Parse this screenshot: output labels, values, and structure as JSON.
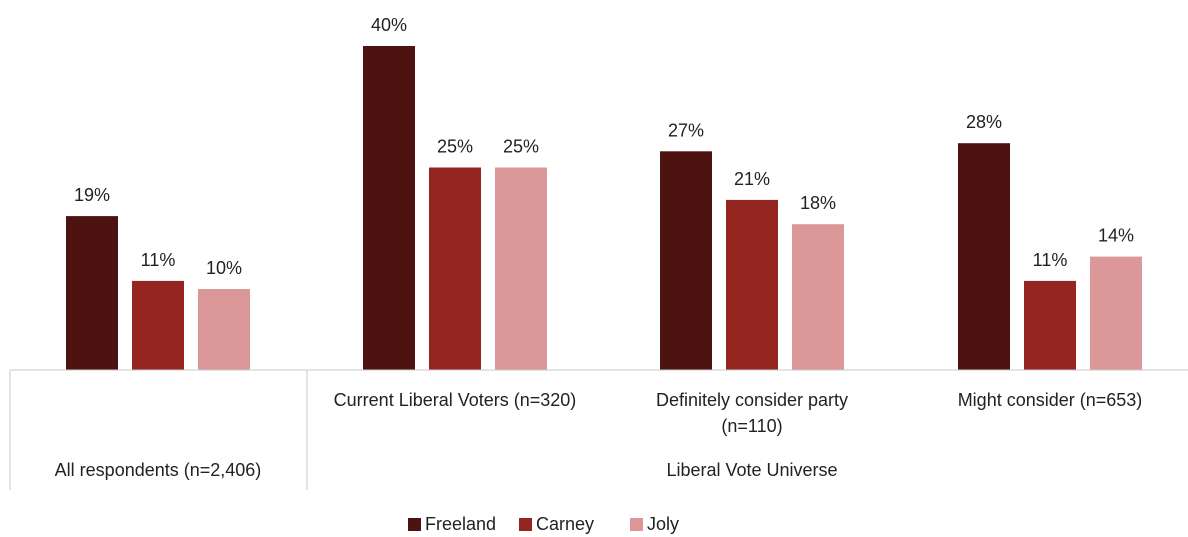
{
  "chart_data": {
    "type": "bar",
    "title": "",
    "xlabel": "",
    "ylabel": "",
    "ylim": [
      0,
      40
    ],
    "grid": false,
    "legend_position": "bottom",
    "value_format": "percent",
    "categories": [
      "All respondents (n=2,406)",
      "Current Liberal Voters (n=320)",
      "Definitely consider party (n=110)",
      "Might consider (n=653)"
    ],
    "category_groups": [
      {
        "label": "",
        "categories": [
          "All respondents (n=2,406)"
        ]
      },
      {
        "label": "Liberal Vote Universe",
        "categories": [
          "Current Liberal Voters (n=320)",
          "Definitely consider party (n=110)",
          "Might consider (n=653)"
        ]
      }
    ],
    "series": [
      {
        "name": "Freeland",
        "color": "#4d1311",
        "values": [
          19,
          40,
          27,
          28
        ]
      },
      {
        "name": "Carney",
        "color": "#952521",
        "values": [
          11,
          25,
          21,
          11
        ]
      },
      {
        "name": "Joly",
        "color": "#dc9898",
        "values": [
          10,
          25,
          18,
          14
        ]
      }
    ]
  }
}
